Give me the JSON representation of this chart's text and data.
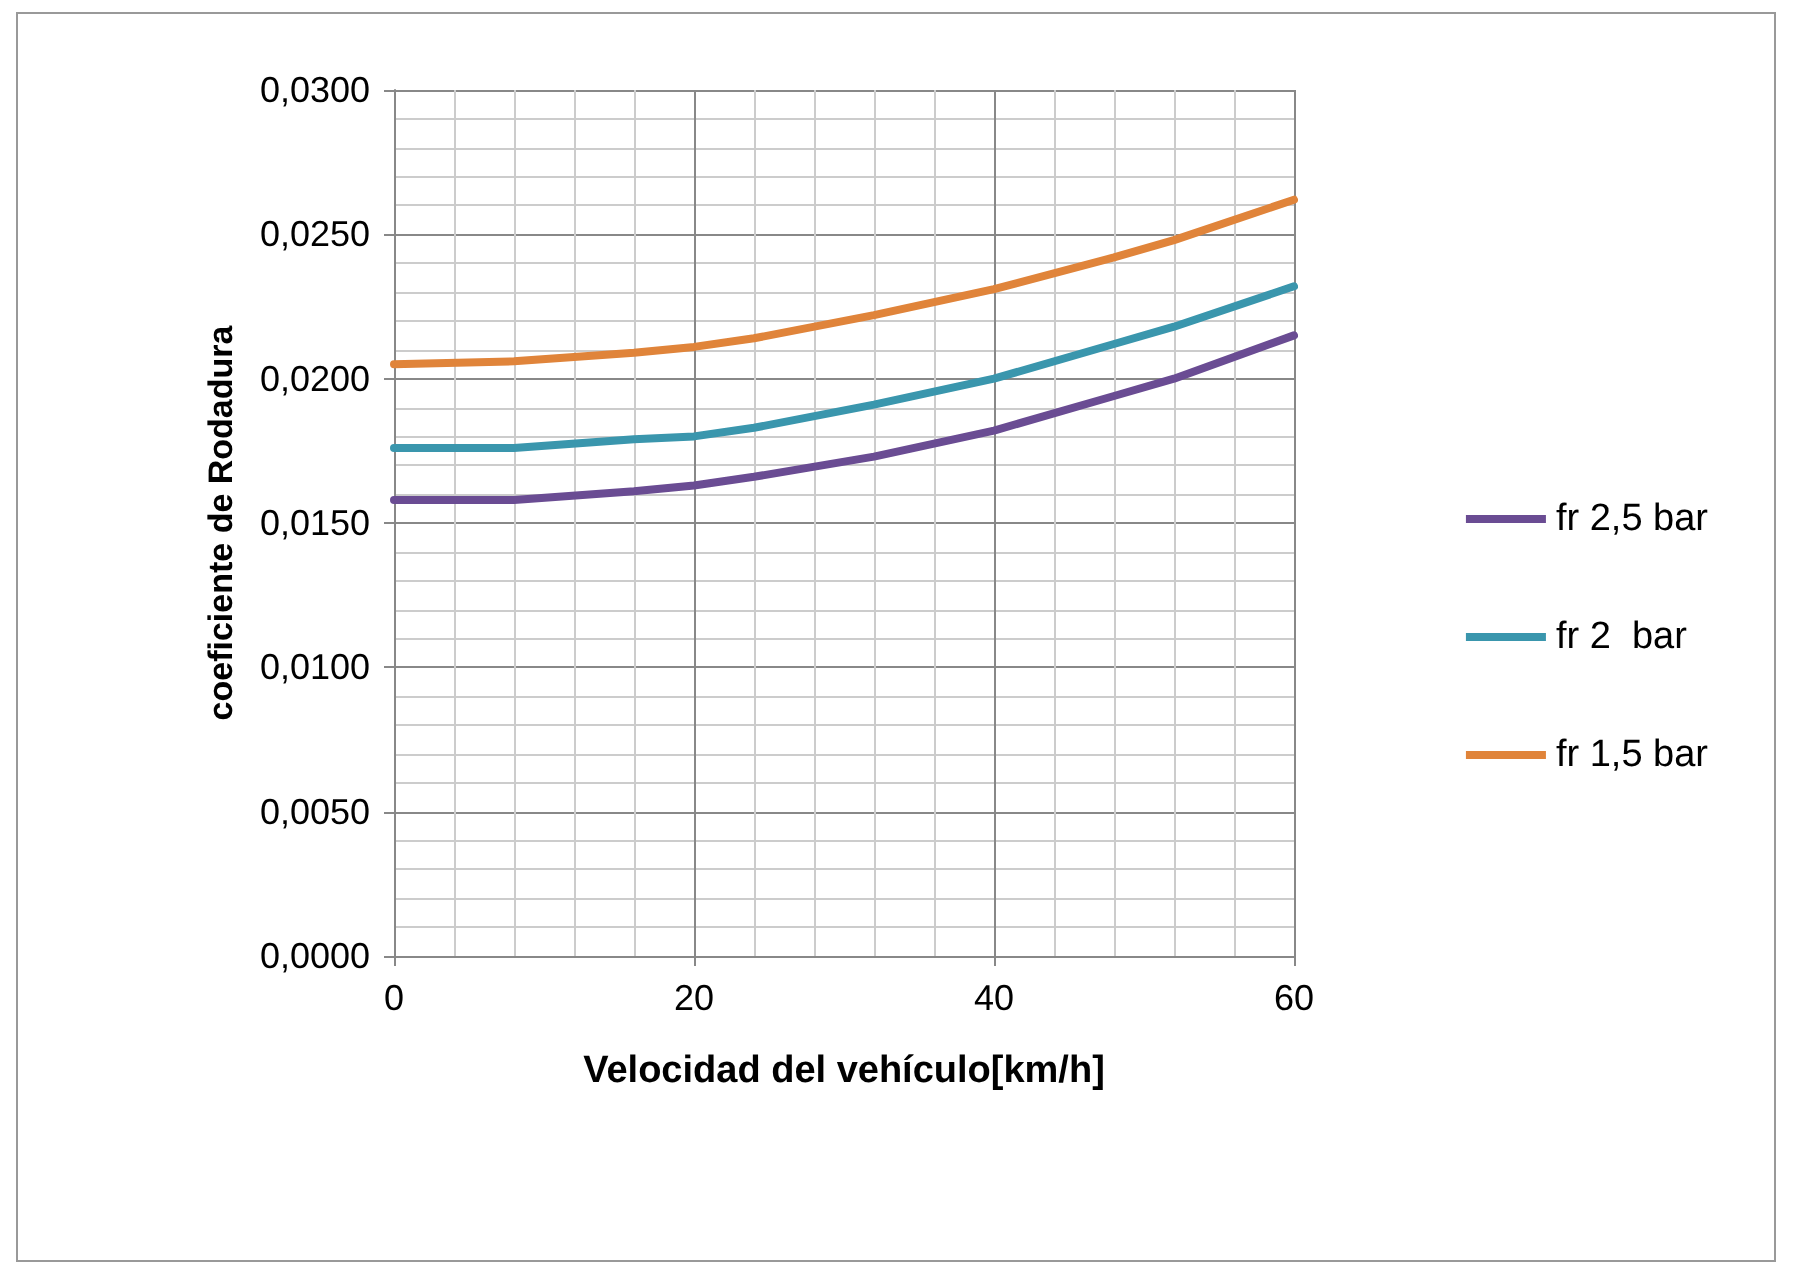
{
  "chart_data": {
    "type": "line",
    "xlabel": "Velocidad del vehículo[km/h]",
    "ylabel": "coeficiente de Rodadura",
    "x": [
      0,
      8,
      16,
      20,
      24,
      32,
      40,
      48,
      52,
      60
    ],
    "series": [
      {
        "name": "fr 2,5 bar",
        "color": "#6a4c93",
        "values": [
          0.0158,
          0.0158,
          0.0161,
          0.0163,
          0.0166,
          0.0173,
          0.0182,
          0.0194,
          0.02,
          0.0215
        ]
      },
      {
        "name": "fr 2  bar",
        "color": "#3a96ad",
        "values": [
          0.0176,
          0.0176,
          0.0179,
          0.018,
          0.0183,
          0.0191,
          0.02,
          0.0212,
          0.0218,
          0.0232
        ]
      },
      {
        "name": "fr 1,5 bar",
        "color": "#e0843a",
        "values": [
          0.0205,
          0.0206,
          0.0209,
          0.0211,
          0.0214,
          0.0222,
          0.0231,
          0.0242,
          0.0248,
          0.0262
        ]
      }
    ],
    "xlim": [
      0,
      60
    ],
    "xticks": [
      0,
      20,
      40,
      60
    ],
    "ylim": [
      0,
      0.03
    ],
    "yticks": [
      {
        "value": 0,
        "label": "0,0000"
      },
      {
        "value": 0.005,
        "label": "0,0050"
      },
      {
        "value": 0.01,
        "label": "0,0100"
      },
      {
        "value": 0.015,
        "label": "0,0150"
      },
      {
        "value": 0.02,
        "label": "0,0200"
      },
      {
        "value": 0.025,
        "label": "0,0250"
      },
      {
        "value": 0.03,
        "label": "0,0300"
      }
    ],
    "grid": true,
    "legend": "right",
    "marker": "none",
    "line_style": "solid"
  }
}
